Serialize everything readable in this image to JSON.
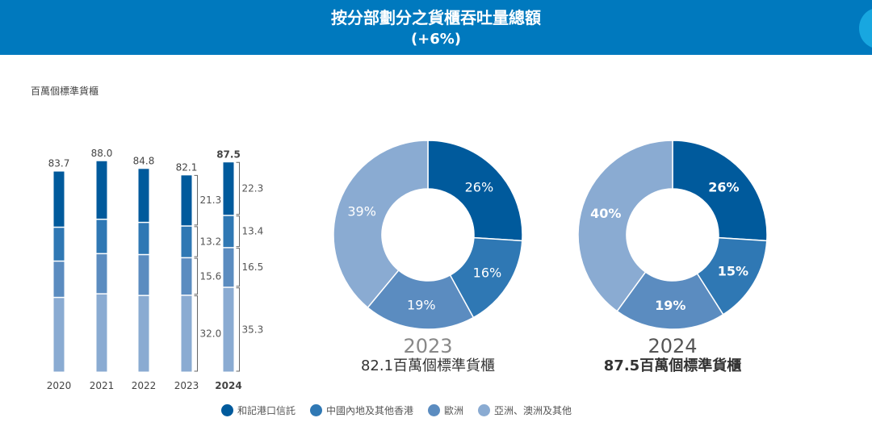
{
  "header": {
    "title": "按分部劃分之貨櫃吞吐量總額",
    "subtitle": "(+6%)"
  },
  "chart_data": [
    {
      "type": "bar",
      "stacked": true,
      "unit_label": "百萬個標準貨櫃",
      "categories": [
        "2020",
        "2021",
        "2022",
        "2023",
        "2024"
      ],
      "totals": [
        "83.7",
        "88.0",
        "84.8",
        "82.1",
        "87.5"
      ],
      "series": [
        {
          "name": "和記港口信託",
          "color": "#005A9C",
          "values": [
            23.4,
            24.4,
            22.5,
            21.3,
            22.3
          ]
        },
        {
          "name": "中國內地及其他香港",
          "color": "#2F78B4",
          "values": [
            14.1,
            14.3,
            13.4,
            13.2,
            13.4
          ]
        },
        {
          "name": "歐洲",
          "color": "#5B8CC0",
          "values": [
            15.1,
            16.7,
            17.0,
            15.6,
            16.5
          ]
        },
        {
          "name": "亞洲、澳洲及其他",
          "color": "#8AABD2",
          "values": [
            31.1,
            32.6,
            31.9,
            32.0,
            35.3
          ]
        }
      ],
      "labeled_values": {
        "2023": [
          "21.3",
          "13.2",
          "15.6",
          "32.0"
        ],
        "2024": [
          "22.3",
          "13.4",
          "16.5",
          "35.3"
        ]
      }
    },
    {
      "type": "pie",
      "donut": true,
      "year": "2023",
      "caption": "82.1百萬個標準貨櫃",
      "values": [
        26,
        16,
        19,
        39
      ],
      "labels": [
        "26%",
        "16%",
        "19%",
        "39%"
      ]
    },
    {
      "type": "pie",
      "donut": true,
      "year": "2024",
      "caption": "87.5百萬個標準貨櫃",
      "values": [
        26,
        15,
        19,
        40
      ],
      "labels": [
        "26%",
        "15%",
        "19%",
        "40%"
      ]
    }
  ],
  "legend": [
    {
      "name": "和記港口信託",
      "color": "#005A9C"
    },
    {
      "name": "中國內地及其他香港",
      "color": "#2F78B4"
    },
    {
      "name": "歐洲",
      "color": "#5B8CC0"
    },
    {
      "name": "亞洲、澳洲及其他",
      "color": "#8AABD2"
    }
  ]
}
